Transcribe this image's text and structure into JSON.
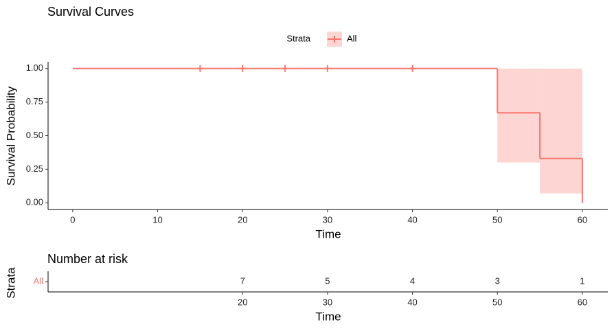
{
  "chart_data": [
    {
      "type": "survival",
      "title": "Survival Curves",
      "xlabel": "Time",
      "ylabel": "Survival Probability",
      "legend_title": "Strata",
      "legend": "top",
      "x": [
        0,
        50,
        55,
        60
      ],
      "series": [
        {
          "name": "All",
          "color": "#f8766d",
          "band_color": "#fdd5d2",
          "values": [
            1.0,
            0.67,
            0.33,
            0.0
          ],
          "lower": [
            1.0,
            0.3,
            0.07,
            null
          ],
          "upper": [
            1.0,
            1.0,
            1.0,
            null
          ],
          "censor_x": [
            15,
            20,
            25,
            30,
            40
          ],
          "censor_values": [
            1.0,
            1.0,
            1.0,
            1.0,
            1.0
          ]
        }
      ],
      "xlim": [
        -2.9,
        63
      ],
      "ylim": [
        -0.05,
        1.05
      ],
      "xticks": [
        0,
        10,
        20,
        30,
        40,
        50,
        60
      ],
      "yticks": [
        {
          "value": 0,
          "label": "0.00"
        },
        {
          "value": 0.25,
          "label": "0.25"
        },
        {
          "value": 0.5,
          "label": "0.50"
        },
        {
          "value": 0.75,
          "label": "0.75"
        },
        {
          "value": 1,
          "label": "1.00"
        }
      ]
    },
    {
      "type": "risk-table",
      "title": "Number at risk",
      "xlabel": "Time",
      "ylabel": "Strata",
      "row": "All",
      "row_color": "#f8766d",
      "x": [
        20,
        30,
        40,
        50,
        60
      ],
      "values": [
        7,
        5,
        4,
        3,
        1
      ],
      "xlim": [
        -2.9,
        63
      ],
      "xticks": [
        20,
        30,
        40,
        50,
        60
      ]
    }
  ]
}
